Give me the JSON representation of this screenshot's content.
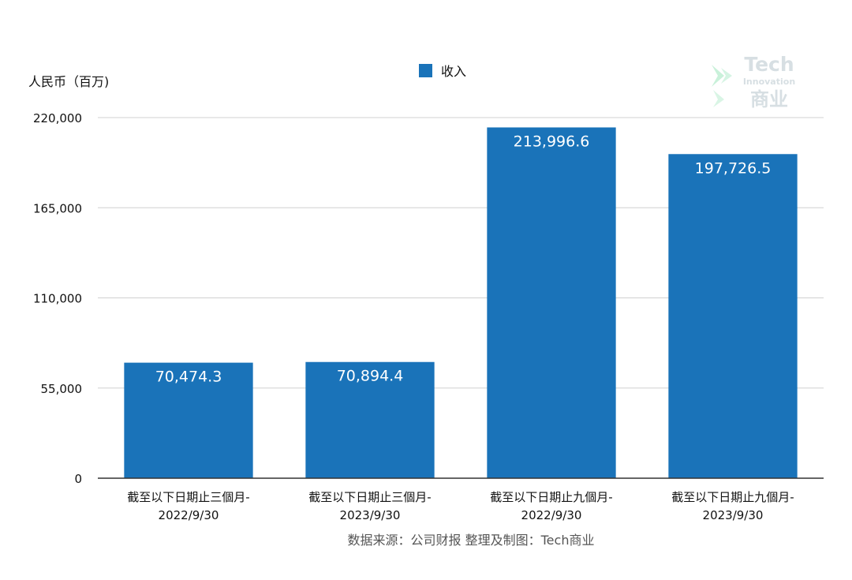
{
  "chart_data": {
    "type": "bar",
    "ylabel": "人民币（百万)",
    "ylim": [
      0,
      220000
    ],
    "yticks": [
      0,
      55000,
      110000,
      165000,
      220000
    ],
    "ytick_labels": [
      "0",
      "55,000",
      "110,000",
      "165,000",
      "220,000"
    ],
    "categories": [
      [
        "截至以下日期止三個月-",
        "2022/9/30"
      ],
      [
        "截至以下日期止三個月-",
        "2023/9/30"
      ],
      [
        "截至以下日期止九個月-",
        "2022/9/30"
      ],
      [
        "截至以下日期止九個月-",
        "2023/9/30"
      ]
    ],
    "series": [
      {
        "name": "收入",
        "values": [
          70474.3,
          70894.4,
          213996.6,
          197726.5
        ],
        "data_labels": [
          "70,474.3",
          "70,894.4",
          "213,996.6",
          "197,726.5"
        ]
      }
    ],
    "grid": true,
    "legend": "top-center",
    "source_note": "数据来源：公司财报 整理及制图：Tech商业",
    "colors": {
      "bar": "#1a73b9",
      "gridline": "#d0d0d0",
      "axis": "#333333",
      "text": "#111111",
      "source_text": "#555555",
      "data_label": "#ffffff"
    }
  },
  "watermark": {
    "line1": "Tech",
    "line2": "Innovation",
    "line3": "商业",
    "colors": {
      "text": "#d7dfe3",
      "arrow": "#bfeed4"
    }
  }
}
